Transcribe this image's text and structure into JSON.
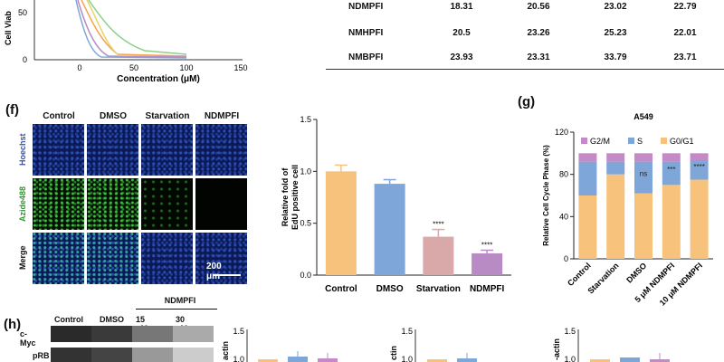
{
  "panel_e_curve": {
    "ylabel": "Cell Viab",
    "xlabel": "Concentration (μM)",
    "xticks": [
      "0",
      "50",
      "100",
      "150"
    ],
    "yticks": [
      "50",
      "0"
    ]
  },
  "ic50_table": {
    "rows": [
      {
        "name": "NDMPFI",
        "values": [
          "18.31",
          "20.56",
          "23.02",
          "22.79"
        ]
      },
      {
        "name": "NMHPFI",
        "values": [
          "20.5",
          "23.26",
          "25.23",
          "22.01"
        ]
      },
      {
        "name": "NMBPFI",
        "values": [
          "23.93",
          "23.31",
          "33.79",
          "23.71"
        ]
      }
    ]
  },
  "panel_f": {
    "label": "(f)",
    "columns": [
      "Control",
      "DMSO",
      "Starvation",
      "NDMPFI"
    ],
    "rows": [
      "Hoechst",
      "Azide488",
      "Merge"
    ],
    "scalebar": "200 μm"
  },
  "panel_g_label": "(g)",
  "panel_h": {
    "label": "(h)",
    "drug": "NDMPFI",
    "lanes": [
      "Control",
      "DMSO",
      "15 μM",
      "30 μM"
    ],
    "proteins": [
      "c-Myc",
      "pRB"
    ],
    "mini_ylabels": [
      "actin",
      "ctin",
      "-actin"
    ],
    "mini_ticks": [
      "1.5",
      "1.0"
    ]
  },
  "chart_data": [
    {
      "type": "bar",
      "title": "",
      "ylabel": "Relative fold of EdU positive cell",
      "categories": [
        "Control",
        "DMSO",
        "Starvation",
        "NDMPFI"
      ],
      "values": [
        1.0,
        0.88,
        0.37,
        0.21
      ],
      "errors": [
        0.06,
        0.04,
        0.07,
        0.03
      ],
      "annotations": [
        "",
        "",
        "****",
        "****"
      ],
      "ylim": [
        0,
        1.5
      ],
      "yticks": [
        "0.0",
        "0.5",
        "1.0",
        "1.5"
      ],
      "colors": [
        "#f6c27c",
        "#7fa6d8",
        "#d9a8a8",
        "#b98bc4"
      ]
    },
    {
      "type": "bar",
      "stacked": true,
      "title": "A549",
      "ylabel": "Relative Cell Cycle Phase (%)",
      "categories": [
        "Control",
        "Starvation",
        "DMSO",
        "5 μM NDMPFI",
        "10 μM NDMPFI"
      ],
      "series": [
        {
          "name": "G0/G1",
          "values": [
            60,
            80,
            62,
            70,
            75
          ],
          "color": "#f6c27c"
        },
        {
          "name": "S",
          "values": [
            32,
            12,
            30,
            22,
            18
          ],
          "color": "#7fa6d8"
        },
        {
          "name": "G2/M",
          "values": [
            8,
            8,
            8,
            8,
            7
          ],
          "color": "#c48ac7"
        }
      ],
      "annotations": [
        "",
        "",
        "ns",
        "***",
        "****"
      ],
      "ylim": [
        0,
        120
      ],
      "yticks": [
        "0",
        "40",
        "80",
        "120"
      ],
      "legend": "top"
    }
  ]
}
